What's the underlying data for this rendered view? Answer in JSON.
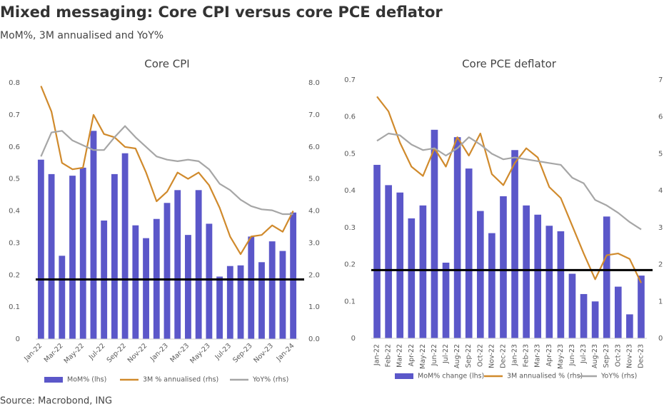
{
  "title": "Mixed messaging: Core CPI versus core PCE deflator",
  "subtitle": "MoM%, 3M annualised and YoY%",
  "source": "Source: Macrobond, ING",
  "chart_data": [
    {
      "type": "bar_line",
      "title": "Core CPI",
      "categories": [
        "Jan-22",
        null,
        "Mar-22",
        null,
        "May-22",
        null,
        "Jul-22",
        null,
        "Sep-22",
        null,
        "Nov-22",
        null,
        "Jan-23",
        null,
        "Mar-23",
        null,
        "May-23",
        null,
        "Jul-23",
        null,
        "Sep-23",
        null,
        "Nov-23",
        null,
        "Jan-24"
      ],
      "series": [
        {
          "name": "MoM% (lhs)",
          "kind": "bar",
          "color": "#5b57c9",
          "values": [
            0.56,
            0.515,
            0.26,
            0.51,
            0.535,
            0.65,
            0.37,
            0.515,
            0.58,
            0.355,
            0.315,
            0.375,
            0.425,
            0.465,
            0.325,
            0.465,
            0.36,
            0.195,
            0.228,
            0.23,
            0.32,
            0.24,
            0.305,
            0.275,
            0.395
          ]
        },
        {
          "name": "3M % annualised (rhs)",
          "kind": "line",
          "axis": "y2",
          "color": "#d08a2c",
          "values": [
            7.9,
            7.1,
            5.5,
            5.3,
            5.35,
            7.0,
            6.4,
            6.3,
            6.0,
            5.95,
            5.2,
            4.3,
            4.6,
            5.2,
            5.0,
            5.2,
            4.8,
            4.1,
            3.2,
            2.65,
            3.2,
            3.25,
            3.55,
            3.35,
            4.0
          ]
        },
        {
          "name": "YoY% (rhs)",
          "kind": "line",
          "axis": "y2",
          "color": "#a6a6a6",
          "values": [
            5.7,
            6.45,
            6.5,
            6.2,
            6.05,
            5.9,
            5.9,
            6.3,
            6.65,
            6.3,
            6.0,
            5.7,
            5.6,
            5.55,
            5.6,
            5.55,
            5.3,
            4.85,
            4.65,
            4.35,
            4.15,
            4.05,
            4.02,
            3.9,
            3.9
          ]
        }
      ],
      "reference_line": 0.186,
      "ylim": [
        0,
        0.8
      ],
      "yticks": [
        0,
        0.1,
        0.2,
        0.3,
        0.4,
        0.5,
        0.6,
        0.7,
        0.8
      ],
      "y2lim": [
        0,
        8
      ],
      "y2ticks": [
        {
          "value": 0,
          "label": "0.0"
        },
        {
          "value": 1,
          "label": "1.0"
        },
        {
          "value": 2,
          "label": "2.0"
        },
        {
          "value": 3,
          "label": "3.0"
        },
        {
          "value": 4,
          "label": "4.0"
        },
        {
          "value": 5,
          "label": "5.0"
        },
        {
          "value": 6,
          "label": "6.0"
        },
        {
          "value": 7,
          "label": "7.0"
        },
        {
          "value": 8,
          "label": "8.0"
        }
      ],
      "grid": false,
      "legend": "bottom"
    },
    {
      "type": "bar_line",
      "title": "Core PCE deflator",
      "categories": [
        "Jan-22",
        "Feb-22",
        "Mar-22",
        "Apr-22",
        "May-22",
        "Jun-22",
        "Jul-22",
        "Aug-22",
        "Sep-22",
        "Oct-22",
        "Nov-22",
        "Dec-22",
        "Jan-23",
        "Feb-23",
        "Mar-23",
        "Apr-23",
        "May-23",
        "Jun-23",
        "Jul-23",
        "Aug-23",
        "Sep-23",
        "Oct-23",
        "Nov-23",
        "Dec-23"
      ],
      "series": [
        {
          "name": "MoM% change (lhs)",
          "kind": "bar",
          "color": "#5b57c9",
          "values": [
            0.47,
            0.415,
            0.395,
            0.325,
            0.36,
            0.565,
            0.205,
            0.545,
            0.46,
            0.345,
            0.285,
            0.385,
            0.51,
            0.36,
            0.335,
            0.305,
            0.29,
            0.175,
            0.12,
            0.1,
            0.33,
            0.14,
            0.065,
            0.17
          ]
        },
        {
          "name": "3M annualised % (rhs)",
          "kind": "line",
          "axis": "y2",
          "color": "#d08a2c",
          "values": [
            6.55,
            6.15,
            5.3,
            4.65,
            4.4,
            5.15,
            4.65,
            5.45,
            4.95,
            5.55,
            4.45,
            4.15,
            4.75,
            5.15,
            4.9,
            4.1,
            3.8,
            3.05,
            2.3,
            1.6,
            2.25,
            2.3,
            2.15,
            1.5
          ]
        },
        {
          "name": "YoY% (rhs)",
          "kind": "line",
          "axis": "y2",
          "color": "#a6a6a6",
          "values": [
            5.35,
            5.55,
            5.5,
            5.25,
            5.1,
            5.15,
            4.95,
            5.15,
            5.45,
            5.25,
            5.0,
            4.85,
            4.9,
            4.85,
            4.8,
            4.75,
            4.7,
            4.35,
            4.2,
            3.75,
            3.6,
            3.4,
            3.15,
            2.95
          ]
        }
      ],
      "reference_line": 0.185,
      "ylim": [
        0,
        0.7
      ],
      "yticks": [
        0,
        0.1,
        0.2,
        0.3,
        0.4,
        0.5,
        0.6,
        0.7
      ],
      "y2lim": [
        0,
        7
      ],
      "y2ticks": [
        0,
        1,
        2,
        3,
        4,
        5,
        6,
        7
      ],
      "grid": false,
      "legend": "bottom"
    }
  ]
}
